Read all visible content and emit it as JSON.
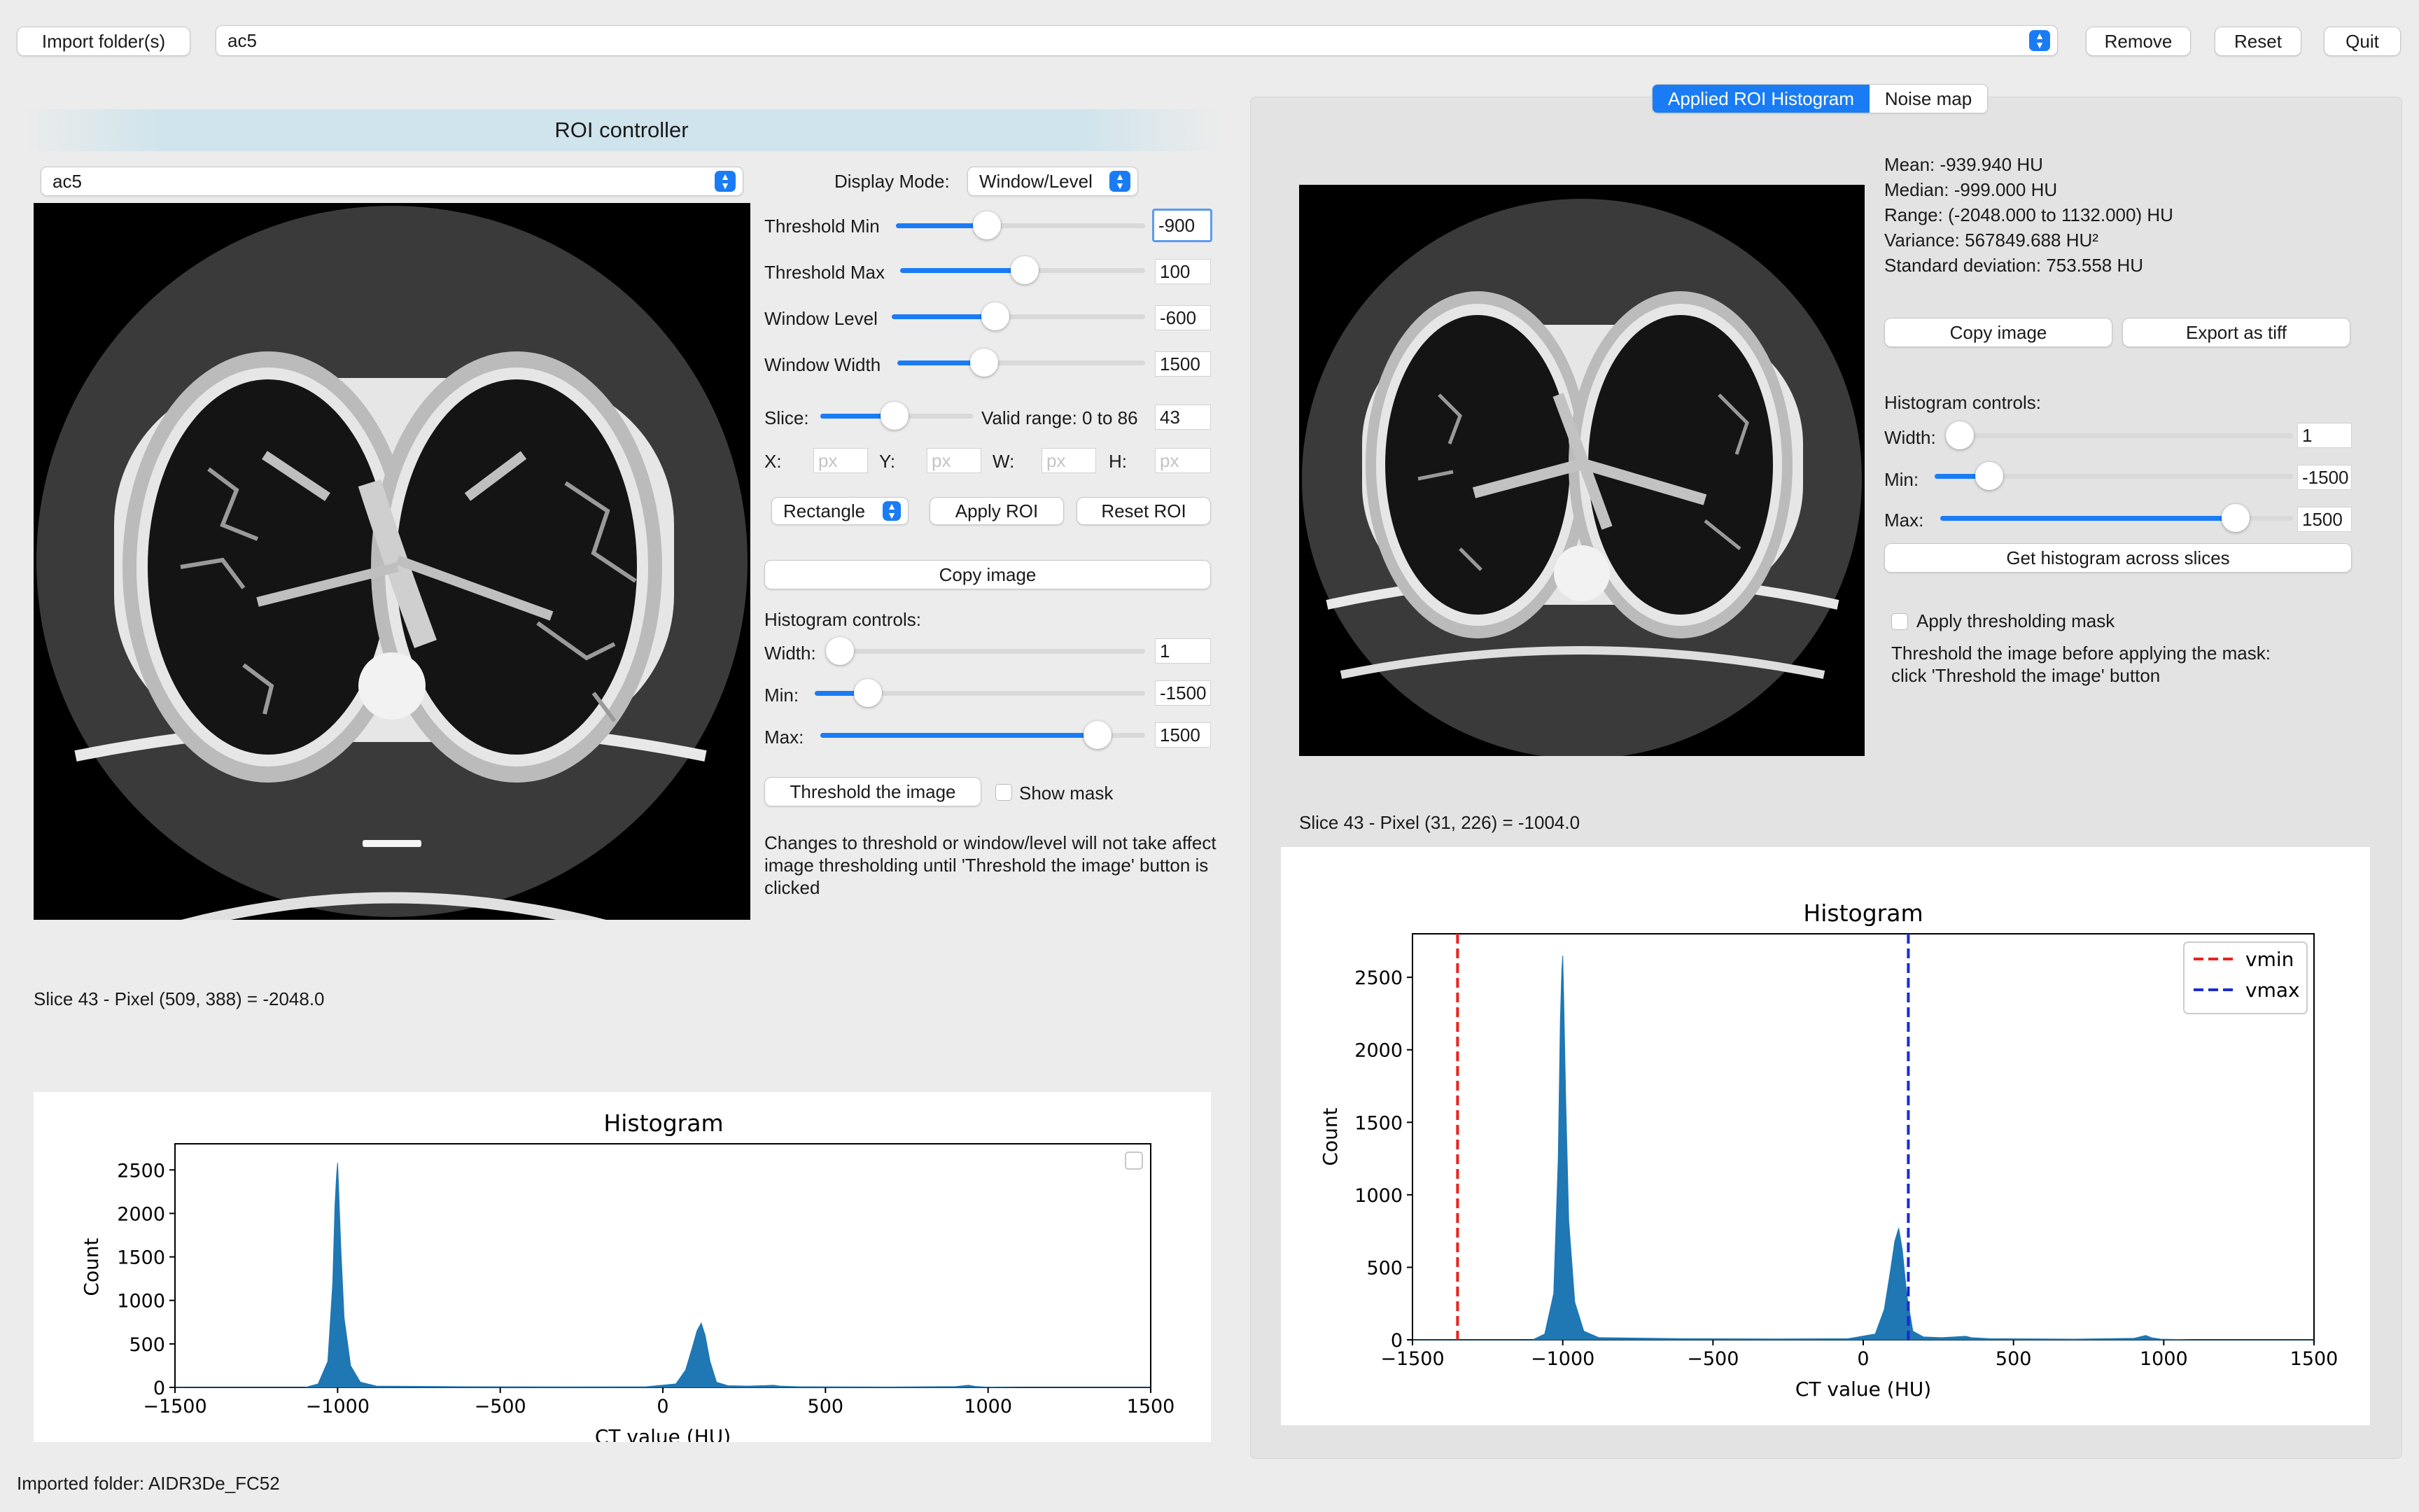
{
  "toolbar": {
    "import_label": "Import folder(s)",
    "dataset_value": "ac5",
    "remove_label": "Remove",
    "reset_label": "Reset",
    "quit_label": "Quit"
  },
  "roi": {
    "title": "ROI controller",
    "dataset_value": "ac5",
    "display_mode_label": "Display Mode:",
    "display_mode_value": "Window/Level",
    "threshold_min_label": "Threshold Min",
    "threshold_min_value": "-900",
    "threshold_max_label": "Threshold Max",
    "threshold_max_value": "100",
    "window_level_label": "Window Level",
    "window_level_value": "-600",
    "window_width_label": "Window Width",
    "window_width_value": "1500",
    "slice_label": "Slice:",
    "valid_range": "Valid range: 0 to 86",
    "slice_value": "43",
    "x_label": "X:",
    "y_label": "Y:",
    "w_label": "W:",
    "h_label": "H:",
    "px_placeholder": "px",
    "shape_value": "Rectangle",
    "apply_roi_label": "Apply ROI",
    "reset_roi_label": "Reset ROI",
    "copy_image_label": "Copy image",
    "hist_controls_label": "Histogram controls:",
    "width_label": "Width:",
    "width_value": "1",
    "min_label": "Min:",
    "min_value": "-1500",
    "max_label": "Max:",
    "max_value": "1500",
    "threshold_button_label": "Threshold the image",
    "show_mask_label": "Show mask",
    "note": "Changes to threshold or window/level will not take affect image thresholding until 'Threshold the image' button is clicked",
    "pixel_readout": "Slice 43 - Pixel (509, 388) = -2048.0"
  },
  "tabs": {
    "applied_label": "Applied ROI Histogram",
    "noise_label": "Noise map"
  },
  "stats": {
    "mean": "Mean: -939.940 HU",
    "median": "Median: -999.000 HU",
    "range": "Range: (-2048.000 to 1132.000) HU",
    "variance": "Variance: 567849.688 HU²",
    "std": "Standard deviation: 753.558 HU"
  },
  "right": {
    "copy_image_label": "Copy image",
    "export_label": "Export as tiff",
    "hist_controls_label": "Histogram controls:",
    "width_label": "Width:",
    "width_value": "1",
    "min_label": "Min:",
    "min_value": "-1500",
    "max_label": "Max:",
    "max_value": "1500",
    "across_slices_label": "Get histogram across slices",
    "apply_mask_label": "Apply thresholding mask",
    "mask_note_1": "Threshold the image before applying the mask:",
    "mask_note_2": "click 'Threshold the image' button",
    "pixel_readout": "Slice 43 - Pixel (31, 226) = -1004.0"
  },
  "status_bar": "Imported folder: AIDR3De_FC52",
  "colors": {
    "accent": "#1a7cf5",
    "hist_fill": "#1f77b4",
    "vmin": "#e8231e",
    "vmax": "#1b2ad6"
  },
  "chart_data": [
    {
      "type": "area",
      "title": "Histogram",
      "xlabel": "CT value (HU)",
      "ylabel": "Count",
      "xlim": [
        -1500,
        1500
      ],
      "ylim": [
        0,
        2800
      ],
      "x_ticks": [
        "−1500",
        "−1000",
        "−500",
        "0",
        "500",
        "1000",
        "1500"
      ],
      "y_ticks": [
        "0",
        "500",
        "1000",
        "1500",
        "2000",
        "2500"
      ],
      "legend": "empty box, top-right",
      "series": [
        {
          "x": [
            -1500,
            -1100,
            -1060,
            -1030,
            -1015,
            -1008,
            -1003,
            -1000,
            -997,
            -990,
            -980,
            -960,
            -930,
            -880,
            -600,
            -300,
            -50,
            40,
            70,
            90,
            105,
            118,
            130,
            145,
            165,
            200,
            260,
            320,
            340,
            360,
            420,
            700,
            900,
            940,
            960,
            990,
            1100,
            1500
          ],
          "values": [
            0,
            0,
            40,
            300,
            1200,
            2100,
            2450,
            2580,
            2300,
            1600,
            800,
            250,
            60,
            15,
            8,
            6,
            8,
            40,
            200,
            450,
            650,
            740,
            600,
            300,
            60,
            20,
            15,
            22,
            25,
            15,
            8,
            5,
            10,
            25,
            12,
            5,
            0,
            0
          ]
        }
      ]
    },
    {
      "type": "area",
      "title": "Histogram",
      "xlabel": "CT value (HU)",
      "ylabel": "Count",
      "xlim": [
        -1500,
        1500
      ],
      "ylim": [
        0,
        2800
      ],
      "x_ticks": [
        "−1500",
        "−1000",
        "−500",
        "0",
        "500",
        "1000",
        "1500"
      ],
      "y_ticks": [
        "0",
        "500",
        "1000",
        "1500",
        "2000",
        "2500"
      ],
      "legend": "top-right",
      "series": [
        {
          "x": [
            -1500,
            -1100,
            -1060,
            -1030,
            -1015,
            -1008,
            -1003,
            -1000,
            -997,
            -990,
            -980,
            -960,
            -930,
            -880,
            -600,
            -300,
            -50,
            40,
            70,
            90,
            105,
            118,
            130,
            145,
            165,
            200,
            260,
            320,
            340,
            360,
            420,
            700,
            900,
            940,
            960,
            990,
            1100,
            1500
          ],
          "values": [
            0,
            0,
            40,
            320,
            1250,
            2200,
            2550,
            2650,
            2380,
            1650,
            820,
            260,
            60,
            15,
            8,
            6,
            8,
            40,
            210,
            470,
            680,
            770,
            620,
            310,
            60,
            20,
            15,
            22,
            25,
            15,
            8,
            5,
            10,
            30,
            14,
            5,
            0,
            0
          ]
        }
      ],
      "lines": [
        {
          "name": "vmin",
          "x": -1350,
          "style": "dashed",
          "color": "#e8231e"
        },
        {
          "name": "vmax",
          "x": 150,
          "style": "dashed",
          "color": "#1b2ad6"
        }
      ]
    }
  ]
}
